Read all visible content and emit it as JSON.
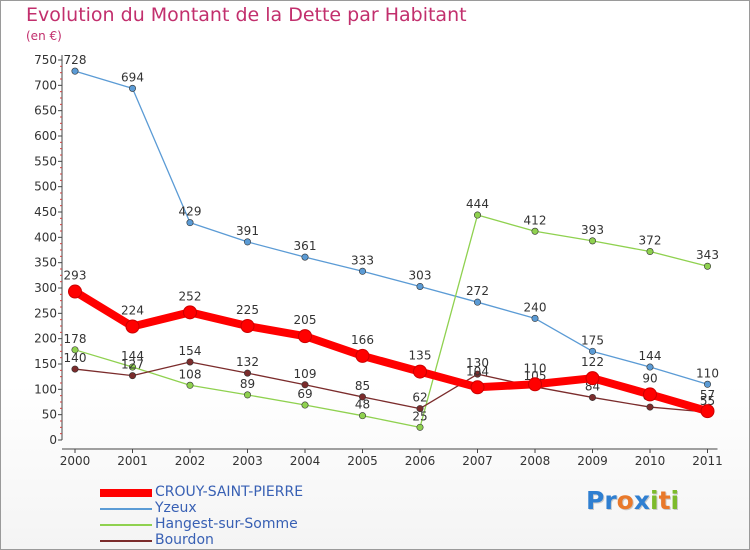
{
  "header": {
    "title": "Evolution du Montant de la Dette par Habitant",
    "subtitle": "(en €)"
  },
  "logo": {
    "text": "Proxiti",
    "letters": [
      {
        "ch": "P",
        "color": "#2f7fd1"
      },
      {
        "ch": "r",
        "color": "#2f7fd1"
      },
      {
        "ch": "o",
        "color": "#e9792b"
      },
      {
        "ch": "x",
        "color": "#2f7fd1"
      },
      {
        "ch": "i",
        "color": "#7dbb2c"
      },
      {
        "ch": "t",
        "color": "#e9792b"
      },
      {
        "ch": "i",
        "color": "#7dbb2c"
      }
    ]
  },
  "chart_data": {
    "type": "line",
    "title": "Evolution du Montant de la Dette par Habitant",
    "subtitle": "(en €)",
    "xlabel": "",
    "ylabel": "",
    "x": [
      "2000",
      "2001",
      "2002",
      "2003",
      "2004",
      "2005",
      "2006",
      "2007",
      "2008",
      "2009",
      "2010",
      "2011"
    ],
    "ylim": [
      0,
      750
    ],
    "yticks": [
      0,
      50,
      100,
      150,
      200,
      250,
      300,
      350,
      400,
      450,
      500,
      550,
      600,
      650,
      700,
      750
    ],
    "grid": false,
    "legend_position": "bottom-left",
    "series": [
      {
        "name": "CROUY-SAINT-PIERRE",
        "color": "#ff0000",
        "emphasis": true,
        "values": [
          293,
          224,
          252,
          225,
          205,
          166,
          135,
          104,
          110,
          122,
          90,
          57
        ]
      },
      {
        "name": "Yzeux",
        "color": "#5b9bd5",
        "emphasis": false,
        "values": [
          728,
          694,
          429,
          391,
          361,
          333,
          303,
          272,
          240,
          175,
          144,
          110
        ]
      },
      {
        "name": "Hangest-sur-Somme",
        "color": "#8fd14f",
        "emphasis": false,
        "values": [
          178,
          144,
          108,
          89,
          69,
          48,
          25,
          444,
          412,
          393,
          372,
          343
        ]
      },
      {
        "name": "Bourdon",
        "color": "#7b2c2c",
        "emphasis": false,
        "values": [
          140,
          127,
          154,
          132,
          109,
          85,
          62,
          130,
          105,
          84,
          65,
          55
        ]
      }
    ]
  }
}
